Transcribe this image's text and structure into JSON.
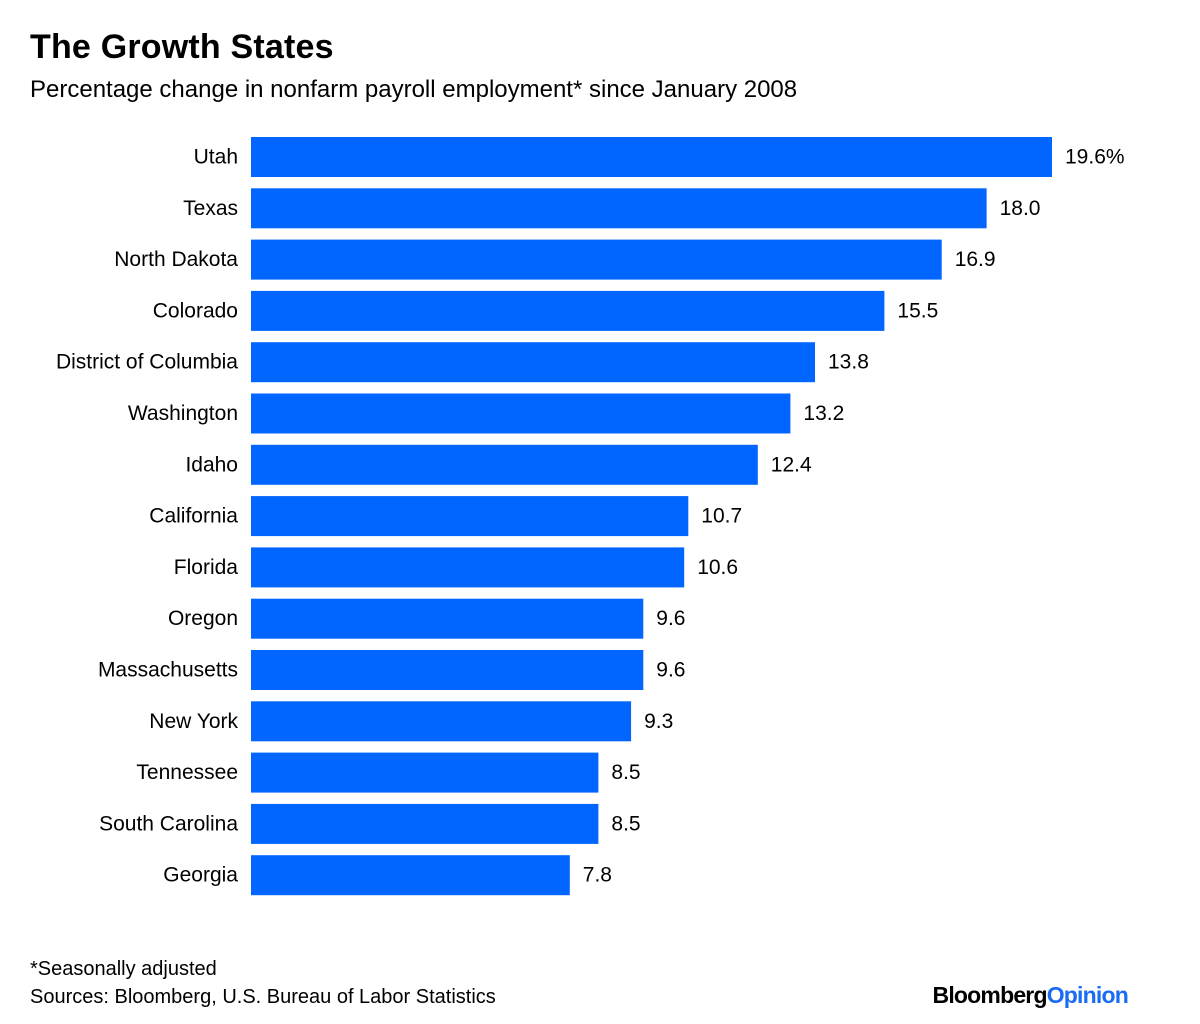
{
  "title": "The Growth States",
  "subtitle": "Percentage change in nonfarm payroll employment* since January 2008",
  "footnote": "*Seasonally adjusted",
  "source": "Sources: Bloomberg, U.S. Bureau of Labor Statistics",
  "logo": {
    "brand": "Bloomberg",
    "section": "Opinion"
  },
  "colors": {
    "bar": "#0066ff",
    "text": "#000000",
    "logo_accent": "#1a6cf5"
  },
  "chart_data": {
    "type": "bar",
    "orientation": "horizontal",
    "categories": [
      "Utah",
      "Texas",
      "North Dakota",
      "Colorado",
      "District of Columbia",
      "Washington",
      "Idaho",
      "California",
      "Florida",
      "Oregon",
      "Massachusetts",
      "New York",
      "Tennessee",
      "South Carolina",
      "Georgia"
    ],
    "values": [
      19.6,
      18.0,
      16.9,
      15.5,
      13.8,
      13.2,
      12.4,
      10.7,
      10.6,
      9.6,
      9.6,
      9.3,
      8.5,
      8.5,
      7.8
    ],
    "value_labels": [
      "19.6%",
      "18.0",
      "16.9",
      "15.5",
      "13.8",
      "13.2",
      "12.4",
      "10.7",
      "10.6",
      "9.6",
      "9.6",
      "9.3",
      "8.5",
      "8.5",
      "7.8"
    ],
    "xlim": [
      0,
      19.6
    ],
    "grid": false,
    "legend": "none"
  }
}
